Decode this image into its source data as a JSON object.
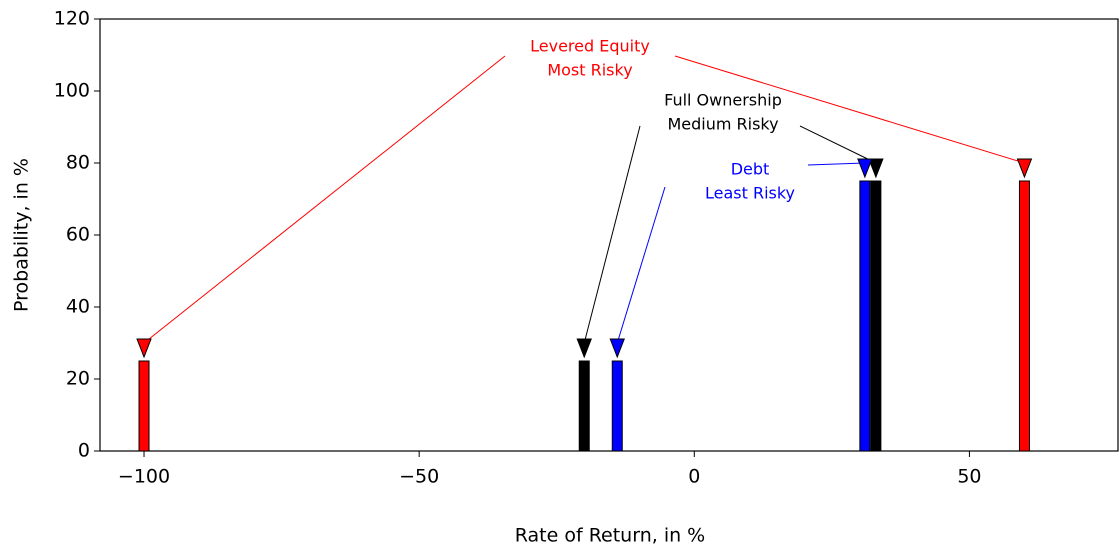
{
  "chart_data": {
    "type": "bar",
    "xlabel": "Rate of Return, in %",
    "ylabel": "Probability, in %",
    "xlim": [
      -108,
      77
    ],
    "ylim": [
      0,
      120
    ],
    "xticks": [
      {
        "value": -100,
        "label": "−100"
      },
      {
        "value": -50,
        "label": "−50"
      },
      0,
      50
    ],
    "yticks": [
      0,
      20,
      40,
      60,
      80,
      100,
      120
    ],
    "series": [
      {
        "annotation": [
          "Levered Equity",
          "Most Risky"
        ],
        "color": "#ff0000",
        "x": [
          -100,
          60
        ],
        "values": [
          25,
          75
        ]
      },
      {
        "annotation": [
          "Full Ownership",
          "Medium Risky"
        ],
        "color": "#000000",
        "x": [
          -20,
          33
        ],
        "values": [
          25,
          75
        ]
      },
      {
        "annotation": [
          "Debt",
          "Least Risky"
        ],
        "color": "#0000ff",
        "x": [
          -14,
          31
        ],
        "values": [
          25,
          75
        ]
      }
    ]
  }
}
